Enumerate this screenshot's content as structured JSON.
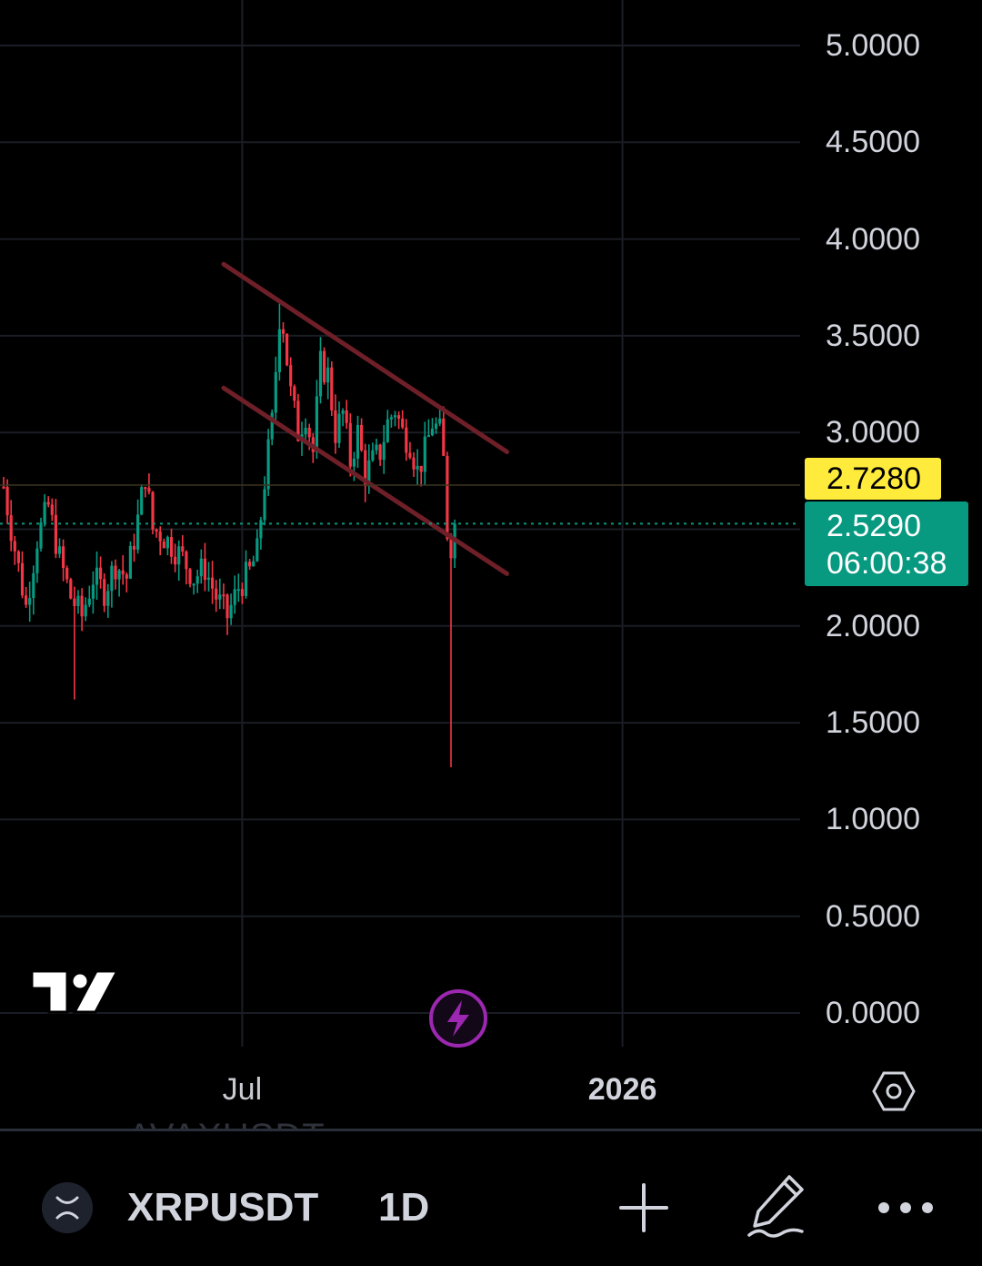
{
  "chart": {
    "y_axis_labels": [
      "5.0000",
      "4.5000",
      "4.0000",
      "3.5000",
      "3.0000",
      "2.0000",
      "1.5000",
      "1.0000",
      "0.5000",
      "0.0000"
    ],
    "x_axis_labels": [
      {
        "text": "Jul",
        "bold": false
      },
      {
        "text": "2026",
        "bold": true
      }
    ],
    "prev_close_label": "2.7280",
    "last_price_label": "2.5290",
    "countdown_label": "06:00:38",
    "colors": {
      "up": "#089981",
      "down": "#f23645",
      "channel": "#6e1f28",
      "grid": "#1a1d24",
      "prev_close": "#ffeb3b",
      "last": "#089981",
      "bolt": "#9c27b0"
    }
  },
  "chart_data": {
    "type": "candlestick",
    "ylim": [
      0,
      5
    ],
    "yticks": [
      0,
      0.5,
      1,
      1.5,
      2,
      2.5,
      3,
      3.5,
      4,
      4.5,
      5
    ],
    "xticks": [
      "Jul",
      "2026"
    ],
    "last_price": 2.529,
    "prev_close": 2.728,
    "close_path": [
      [
        0,
        2.72
      ],
      [
        3,
        2.4
      ],
      [
        6,
        2.1
      ],
      [
        9,
        2.45
      ],
      [
        12,
        2.62
      ],
      [
        15,
        2.35
      ],
      [
        18,
        2.15
      ],
      [
        21,
        2.05
      ],
      [
        24,
        2.25
      ],
      [
        27,
        2.18
      ],
      [
        30,
        2.32
      ],
      [
        33,
        2.25
      ],
      [
        36,
        2.55
      ],
      [
        38,
        2.78
      ],
      [
        40,
        2.5
      ],
      [
        42,
        2.48
      ],
      [
        45,
        2.42
      ],
      [
        48,
        2.35
      ],
      [
        51,
        2.25
      ],
      [
        54,
        2.3
      ],
      [
        57,
        2.15
      ],
      [
        60,
        2.05
      ],
      [
        63,
        2.2
      ],
      [
        66,
        2.28
      ],
      [
        68,
        2.38
      ],
      [
        70,
        2.75
      ],
      [
        72,
        3.05
      ],
      [
        74,
        3.6
      ],
      [
        75,
        3.55
      ],
      [
        77,
        3.2
      ],
      [
        79,
        3.0
      ],
      [
        81,
        3.1
      ],
      [
        83,
        2.9
      ],
      [
        85,
        3.35
      ],
      [
        87,
        3.3
      ],
      [
        89,
        3.0
      ],
      [
        91,
        3.1
      ],
      [
        93,
        2.85
      ],
      [
        95,
        3.0
      ],
      [
        97,
        2.78
      ],
      [
        99,
        2.85
      ],
      [
        101,
        2.9
      ],
      [
        103,
        3.05
      ],
      [
        105,
        3.12
      ],
      [
        107,
        3.0
      ],
      [
        109,
        2.95
      ],
      [
        111,
        2.8
      ],
      [
        113,
        2.9
      ],
      [
        115,
        3.05
      ],
      [
        117,
        3.0
      ],
      [
        118,
        2.85
      ],
      [
        119,
        2.45
      ],
      [
        120,
        2.35
      ],
      [
        121,
        2.529
      ]
    ],
    "wick_extremes": {
      "low": 1.27,
      "high": 3.68
    },
    "channel": {
      "upper": {
        "from": [
          59,
          3.87
        ],
        "to": [
          135,
          2.9
        ]
      },
      "lower": {
        "from": [
          59,
          3.23
        ],
        "to": [
          135,
          2.27
        ]
      }
    },
    "grid": true
  },
  "footer": {
    "symbol": "XRPUSDT",
    "interval": "1D",
    "ghost_symbol": "AVAXUSDT"
  }
}
